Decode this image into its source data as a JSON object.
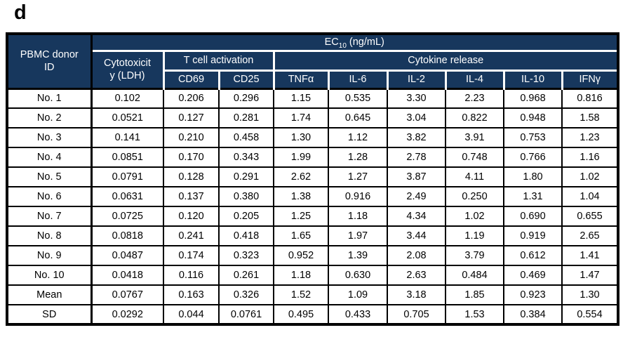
{
  "panel_label": "d",
  "colors": {
    "header_bg": "#17375D",
    "header_text": "#FFFFFF",
    "border": "#000000",
    "body_bg": "#FFFFFF",
    "body_text": "#000000"
  },
  "table": {
    "corner": {
      "line1": "PBMC donor",
      "line2": "ID"
    },
    "ec_header": {
      "prefix": "EC",
      "sub": "10",
      "suffix": " (ng/mL)"
    },
    "groups": {
      "cytotoxicity_line1": "Cytotoxicit",
      "cytotoxicity_line2": "y (LDH)",
      "t_cell_activation": "T cell activation",
      "cytokine_release": "Cytokine release"
    },
    "columns": [
      "CD69",
      "CD25",
      "TNFα",
      "IL-6",
      "IL-2",
      "IL-4",
      "IL-10",
      "IFNγ"
    ],
    "rows": [
      {
        "label": "No. 1",
        "values": [
          "0.102",
          "0.206",
          "0.296",
          "1.15",
          "0.535",
          "3.30",
          "2.23",
          "0.968",
          "0.816"
        ]
      },
      {
        "label": "No. 2",
        "values": [
          "0.0521",
          "0.127",
          "0.281",
          "1.74",
          "0.645",
          "3.04",
          "0.822",
          "0.948",
          "1.58"
        ]
      },
      {
        "label": "No. 3",
        "values": [
          "0.141",
          "0.210",
          "0.458",
          "1.30",
          "1.12",
          "3.82",
          "3.91",
          "0.753",
          "1.23"
        ]
      },
      {
        "label": "No. 4",
        "values": [
          "0.0851",
          "0.170",
          "0.343",
          "1.99",
          "1.28",
          "2.78",
          "0.748",
          "0.766",
          "1.16"
        ]
      },
      {
        "label": "No. 5",
        "values": [
          "0.0791",
          "0.128",
          "0.291",
          "2.62",
          "1.27",
          "3.87",
          "4.11",
          "1.80",
          "1.02"
        ]
      },
      {
        "label": "No. 6",
        "values": [
          "0.0631",
          "0.137",
          "0.380",
          "1.38",
          "0.916",
          "2.49",
          "0.250",
          "1.31",
          "1.04"
        ]
      },
      {
        "label": "No. 7",
        "values": [
          "0.0725",
          "0.120",
          "0.205",
          "1.25",
          "1.18",
          "4.34",
          "1.02",
          "0.690",
          "0.655"
        ]
      },
      {
        "label": "No. 8",
        "values": [
          "0.0818",
          "0.241",
          "0.418",
          "1.65",
          "1.97",
          "3.44",
          "1.19",
          "0.919",
          "2.65"
        ]
      },
      {
        "label": "No. 9",
        "values": [
          "0.0487",
          "0.174",
          "0.323",
          "0.952",
          "1.39",
          "2.08",
          "3.79",
          "0.612",
          "1.41"
        ]
      },
      {
        "label": "No. 10",
        "values": [
          "0.0418",
          "0.116",
          "0.261",
          "1.18",
          "0.630",
          "2.63",
          "0.484",
          "0.469",
          "1.47"
        ]
      },
      {
        "label": "Mean",
        "values": [
          "0.0767",
          "0.163",
          "0.326",
          "1.52",
          "1.09",
          "3.18",
          "1.85",
          "0.923",
          "1.30"
        ]
      },
      {
        "label": "SD",
        "values": [
          "0.0292",
          "0.044",
          "0.0761",
          "0.495",
          "0.433",
          "0.705",
          "1.53",
          "0.384",
          "0.554"
        ]
      }
    ]
  }
}
